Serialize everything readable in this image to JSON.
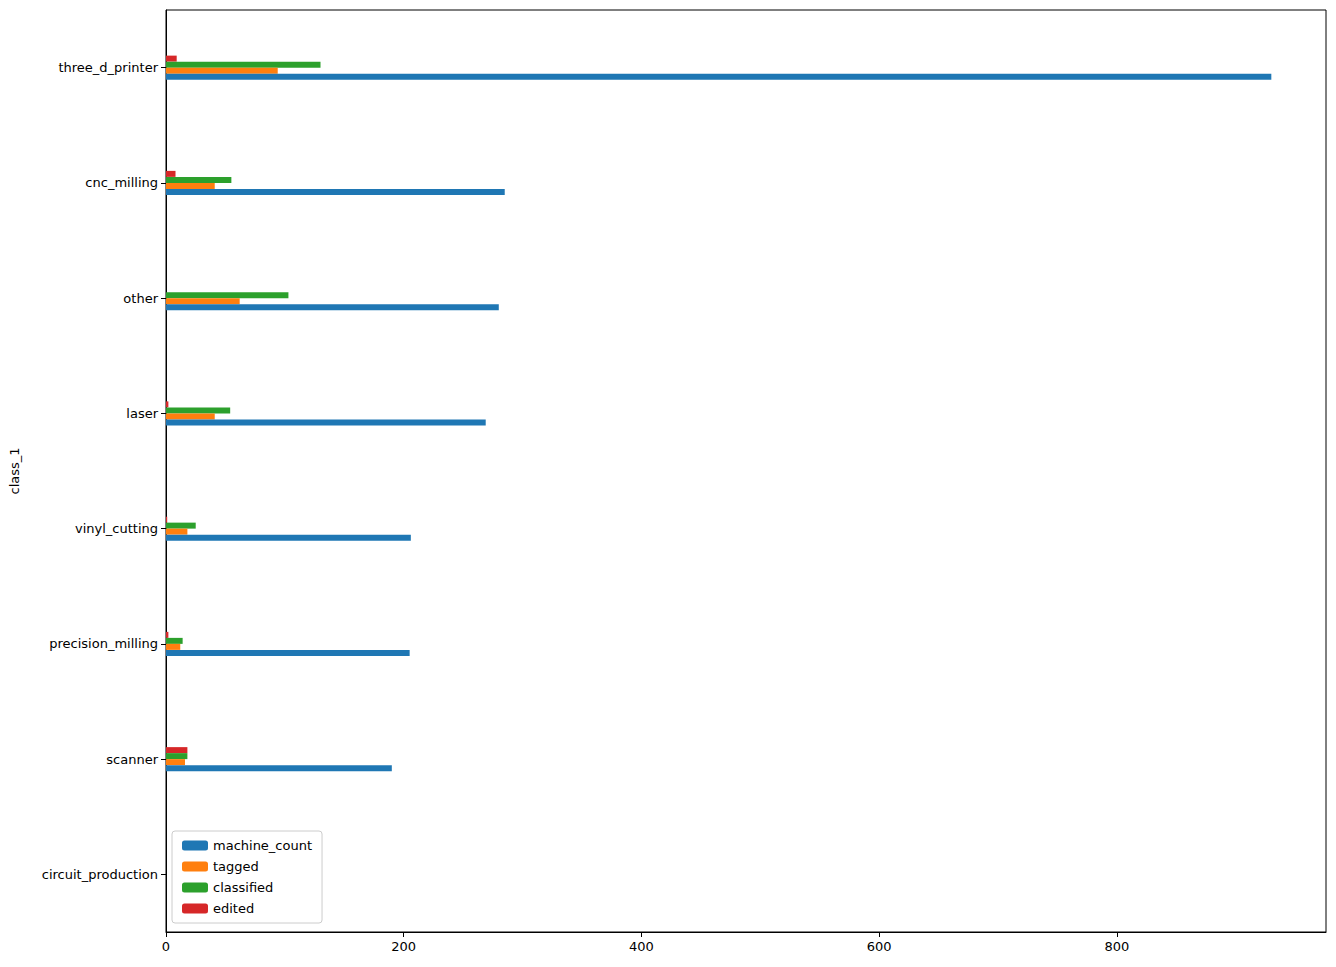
{
  "chart_data": {
    "type": "bar",
    "orientation": "horizontal",
    "y_label": "class_1",
    "categories": [
      "three_d_printer",
      "cnc_milling",
      "other",
      "laser",
      "vinyl_cutting",
      "precision_milling",
      "scanner",
      "circuit_production"
    ],
    "series": [
      {
        "name": "machine_count",
        "color": "#1f77b4",
        "values": [
          930,
          285,
          280,
          269,
          206,
          205,
          190,
          0
        ]
      },
      {
        "name": "tagged",
        "color": "#ff7f0e",
        "values": [
          94,
          41,
          62,
          41,
          18,
          12,
          16,
          0
        ]
      },
      {
        "name": "classified",
        "color": "#2ca02c",
        "values": [
          130,
          55,
          103,
          54,
          25,
          14,
          18,
          0
        ]
      },
      {
        "name": "edited",
        "color": "#d62728",
        "values": [
          9,
          8,
          0,
          2,
          1,
          2,
          18,
          0
        ]
      }
    ],
    "xlim": [
      0,
      976
    ],
    "xticks": [
      0,
      200,
      400,
      600,
      800
    ],
    "grid": false,
    "legend": "lower left"
  }
}
